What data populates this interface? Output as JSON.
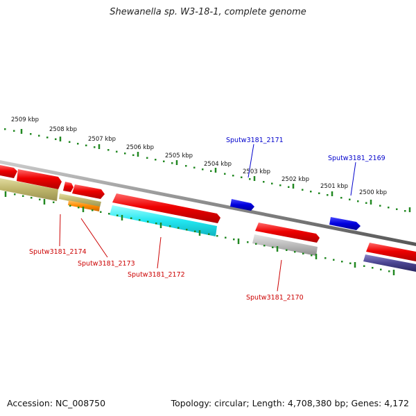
{
  "title": "Shewanella sp. W3-18-1, complete genome",
  "accession": "Accession: NC_008750",
  "topology": "Topology: circular; Length: 4,708,380 bp; Genes: 4,172",
  "scale_labels": [
    "2509 kbp",
    "2508 kbp",
    "2507 kbp",
    "2506 kbp",
    "2505 kbp",
    "2504 kbp",
    "2503 kbp",
    "2502 kbp",
    "2501 kbp",
    "2500 kbp"
  ],
  "gene_labels_top": [
    "Sputw3181_2171",
    "Sputw3181_2169"
  ],
  "gene_labels_bottom": [
    "Sputw3181_2174",
    "Sputw3181_2173",
    "Sputw3181_2172",
    "Sputw3181_2170"
  ],
  "colors": {
    "forward_gene": "#ee0000",
    "reverse_gene": "#0000dd",
    "tick": "#228822",
    "label_top": "#0000cc",
    "label_bottom": "#cc0000",
    "backbone": "#888888"
  }
}
